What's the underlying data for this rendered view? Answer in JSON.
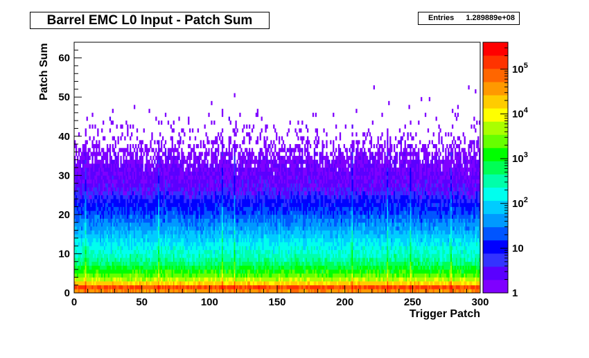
{
  "title": "Barrel EMC L0 Input - Patch Sum",
  "stats": {
    "label": "Entries",
    "value": "1.289889e+08"
  },
  "footer_stamp": "",
  "chart_data": {
    "type": "heatmap",
    "title": "Barrel EMC L0 Input - Patch Sum",
    "xlabel": "Trigger Patch",
    "ylabel": "Patch Sum",
    "xlim": [
      0,
      300
    ],
    "ylim": [
      0,
      64
    ],
    "x_ticks": [
      0,
      50,
      100,
      150,
      200,
      250,
      300
    ],
    "y_ticks": [
      0,
      10,
      20,
      30,
      40,
      50,
      60
    ],
    "z_scale": "log",
    "zlim": [
      1,
      400000
    ],
    "z_ticks": [
      {
        "value": 1,
        "label": "1"
      },
      {
        "value": 10,
        "label": "10"
      },
      {
        "value": 100,
        "base": "10",
        "exp": "2"
      },
      {
        "value": 1000,
        "base": "10",
        "exp": "3"
      },
      {
        "value": 10000,
        "base": "10",
        "exp": "4"
      },
      {
        "value": 100000,
        "base": "10",
        "exp": "5"
      }
    ],
    "bins": {
      "x": 300,
      "y": 64
    },
    "profile_by_patch_sum": [
      {
        "y": 0,
        "counts": 5000
      },
      {
        "y": 1,
        "counts": 400000
      },
      {
        "y": 2,
        "counts": 30000
      },
      {
        "y": 4,
        "counts": 3000
      },
      {
        "y": 8,
        "counts": 400
      },
      {
        "y": 12,
        "counts": 150
      },
      {
        "y": 20,
        "counts": 20
      },
      {
        "y": 28,
        "counts": 3
      },
      {
        "y": 36,
        "counts": 1
      }
    ],
    "notable_patches": [
      8,
      62,
      109,
      118,
      205,
      231,
      248,
      278
    ],
    "palette": [
      "#7f00ff",
      "#5a00ff",
      "#3333ff",
      "#0000ff",
      "#0055ff",
      "#0099ff",
      "#00ccff",
      "#00ffee",
      "#00ffaa",
      "#00ff55",
      "#00ff00",
      "#66ff00",
      "#aaff00",
      "#ffff00",
      "#ffcc00",
      "#ff9900",
      "#ff6600",
      "#ff3300",
      "#ff0000"
    ]
  }
}
